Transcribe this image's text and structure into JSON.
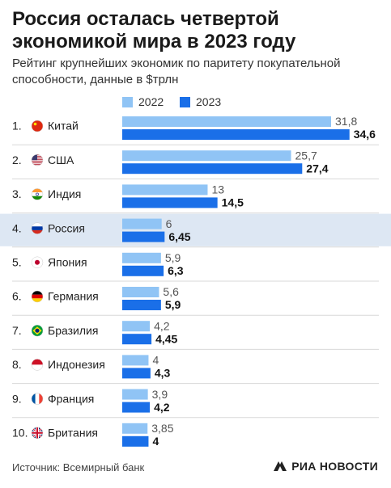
{
  "title": "Россия осталась четвертой экономикой мира в 2023 году",
  "subtitle": "Рейтинг крупнейших экономик по паритету покупательной способности, данные в $трлн",
  "source": "Источник: Всемирный банк",
  "brand": "РИА НОВОСТИ",
  "colors": {
    "series_2022": "#90c4f5",
    "series_2023": "#1a6fe8",
    "highlight_row": "#dde7f3",
    "separator": "#d8d8d8"
  },
  "chart_data": {
    "type": "bar",
    "orientation": "horizontal",
    "highlight": "Россия",
    "categories": [
      "Китай",
      "США",
      "Индия",
      "Россия",
      "Япония",
      "Германия",
      "Бразилия",
      "Индонезия",
      "Франция",
      "Британия"
    ],
    "ranks": [
      "1.",
      "2.",
      "3.",
      "4.",
      "5.",
      "6.",
      "7.",
      "8.",
      "9.",
      "10."
    ],
    "flags": [
      "china-flag-icon",
      "usa-flag-icon",
      "india-flag-icon",
      "russia-flag-icon",
      "japan-flag-icon",
      "germany-flag-icon",
      "brazil-flag-icon",
      "indonesia-flag-icon",
      "france-flag-icon",
      "uk-flag-icon"
    ],
    "series": [
      {
        "name": "2022",
        "values": [
          31.8,
          25.7,
          13,
          6,
          5.9,
          5.6,
          4.2,
          4,
          3.9,
          3.85
        ],
        "labels": [
          "31,8",
          "25,7",
          "13",
          "6",
          "5,9",
          "5,6",
          "4,2",
          "4",
          "3,9",
          "3,85"
        ]
      },
      {
        "name": "2023",
        "values": [
          34.6,
          27.4,
          14.5,
          6.45,
          6.3,
          5.9,
          4.45,
          4.3,
          4.2,
          4
        ],
        "labels": [
          "34,6",
          "27,4",
          "14,5",
          "6,45",
          "6,3",
          "5,9",
          "4,45",
          "4,3",
          "4,2",
          "4"
        ]
      }
    ]
  }
}
